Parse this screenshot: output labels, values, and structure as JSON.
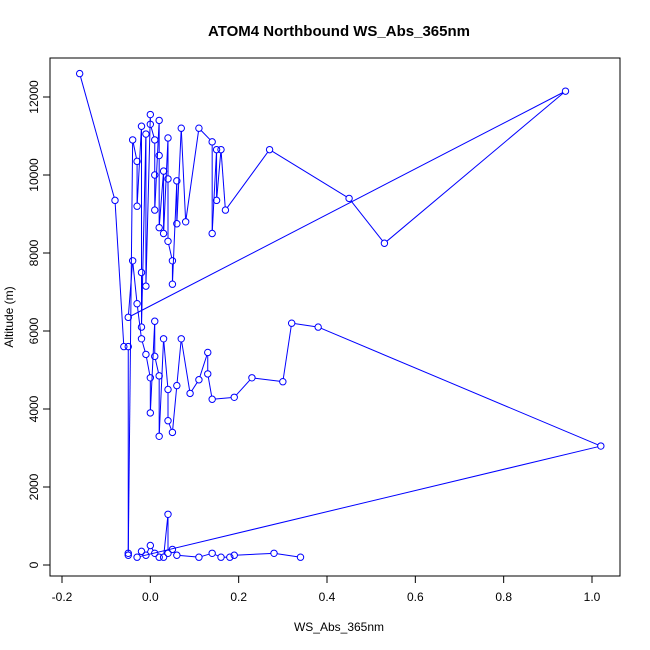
{
  "chart_data": {
    "type": "line",
    "title": "ATOM4 Northbound WS_Abs_365nm",
    "xlabel": "WS_Abs_365nm",
    "ylabel": "Altitude (m)",
    "xlim": [
      -0.2,
      1.0
    ],
    "ylim": [
      0,
      12000
    ],
    "xticks": [
      "-0.2",
      "0.0",
      "0.2",
      "0.4",
      "0.6",
      "0.8",
      "1.0"
    ],
    "yticks": [
      "0",
      "2000",
      "4000",
      "6000",
      "8000",
      "10000",
      "12000"
    ],
    "grid": false,
    "legend": "none",
    "series": [
      {
        "color": "#0000FF",
        "marker": "open-circle",
        "points": [
          [
            -0.16,
            12600
          ],
          [
            -0.08,
            9350
          ],
          [
            -0.06,
            5600
          ],
          [
            -0.05,
            5600
          ],
          [
            -0.05,
            300
          ],
          [
            -0.05,
            250
          ],
          [
            -0.04,
            10900
          ],
          [
            -0.03,
            10350
          ],
          [
            -0.03,
            9200
          ],
          [
            -0.02,
            11250
          ],
          [
            -0.02,
            7500
          ],
          [
            -0.02,
            6100
          ],
          [
            -0.01,
            11050
          ],
          [
            -0.01,
            7150
          ],
          [
            0.0,
            11550
          ],
          [
            0.0,
            11300
          ],
          [
            0.01,
            10900
          ],
          [
            0.01,
            10000
          ],
          [
            0.01,
            9100
          ],
          [
            0.02,
            11400
          ],
          [
            0.02,
            10500
          ],
          [
            0.02,
            8650
          ],
          [
            0.03,
            10100
          ],
          [
            0.03,
            8500
          ],
          [
            0.04,
            10950
          ],
          [
            0.04,
            9900
          ],
          [
            0.04,
            8300
          ],
          [
            0.05,
            7800
          ],
          [
            0.05,
            7200
          ],
          [
            0.06,
            9850
          ],
          [
            0.06,
            8750
          ],
          [
            0.07,
            11200
          ],
          [
            0.08,
            8800
          ],
          [
            0.11,
            11200
          ],
          [
            0.14,
            10850
          ],
          [
            0.14,
            8500
          ],
          [
            0.15,
            10650
          ],
          [
            0.15,
            9350
          ],
          [
            0.16,
            10650
          ],
          [
            0.17,
            9100
          ],
          [
            0.27,
            10650
          ],
          [
            0.45,
            9400
          ],
          [
            0.53,
            8250
          ],
          [
            0.94,
            12150
          ],
          [
            -0.05,
            6350
          ],
          [
            -0.04,
            7800
          ],
          [
            -0.03,
            6700
          ],
          [
            -0.02,
            5800
          ],
          [
            -0.01,
            5400
          ],
          [
            0.0,
            4800
          ],
          [
            0.0,
            3900
          ],
          [
            0.01,
            6250
          ],
          [
            0.01,
            5350
          ],
          [
            0.02,
            4850
          ],
          [
            0.02,
            3300
          ],
          [
            0.03,
            5800
          ],
          [
            0.04,
            4500
          ],
          [
            0.04,
            3700
          ],
          [
            0.05,
            3400
          ],
          [
            0.06,
            4600
          ],
          [
            0.07,
            5800
          ],
          [
            0.09,
            4400
          ],
          [
            0.11,
            4750
          ],
          [
            0.13,
            5450
          ],
          [
            0.13,
            4900
          ],
          [
            0.14,
            4250
          ],
          [
            0.19,
            4300
          ],
          [
            0.23,
            4800
          ],
          [
            0.3,
            4700
          ],
          [
            0.32,
            6200
          ],
          [
            0.38,
            6100
          ],
          [
            1.02,
            3050
          ],
          [
            -0.03,
            200
          ],
          [
            -0.02,
            350
          ],
          [
            -0.01,
            250
          ],
          [
            0.0,
            500
          ],
          [
            0.01,
            300
          ],
          [
            0.02,
            200
          ],
          [
            0.03,
            200
          ],
          [
            0.04,
            1300
          ],
          [
            0.04,
            300
          ],
          [
            0.05,
            400
          ],
          [
            0.06,
            250
          ],
          [
            0.11,
            200
          ],
          [
            0.14,
            300
          ],
          [
            0.16,
            200
          ],
          [
            0.18,
            200
          ],
          [
            0.19,
            250
          ],
          [
            0.28,
            300
          ],
          [
            0.34,
            200
          ]
        ]
      }
    ]
  }
}
